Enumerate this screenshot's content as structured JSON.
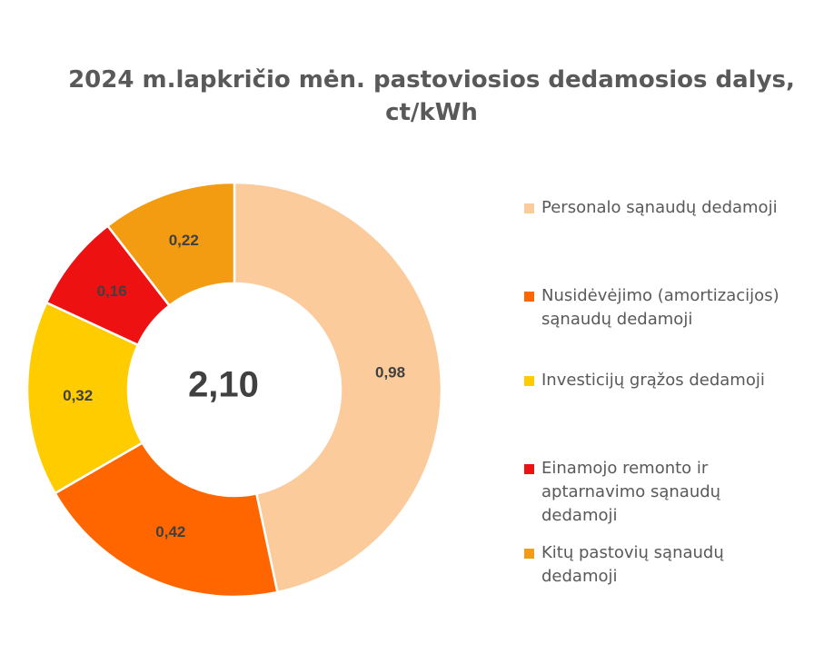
{
  "chart_data": {
    "type": "pie",
    "variant": "donut",
    "title_lines": [
      "2024 m.lapkričio mėn. pastoviosios dedamosios dalys,",
      "ct/kWh"
    ],
    "center_label": "2,10",
    "slices": [
      {
        "label": "Personalo sąnaudų dedamoji",
        "value": 0.98,
        "display": "0,98",
        "color": "#FBCB9C"
      },
      {
        "label": "Nusidėvėjimo (amortizacijos)\nsąnaudų dedamoji",
        "value": 0.42,
        "display": "0,42",
        "color": "#FF6600"
      },
      {
        "label": "Investicijų grąžos dedamoji",
        "value": 0.32,
        "display": "0,32",
        "color": "#FFCC00"
      },
      {
        "label": "Einamojo remonto ir\naptarnavimo sąnaudų\ndedamoji",
        "value": 0.16,
        "display": "0,16",
        "color": "#EE1111"
      },
      {
        "label": "Kitų pastovių sąnaudų\ndedamoji",
        "value": 0.22,
        "display": "0,22",
        "color": "#F39C12"
      }
    ],
    "legend_position": "right"
  }
}
